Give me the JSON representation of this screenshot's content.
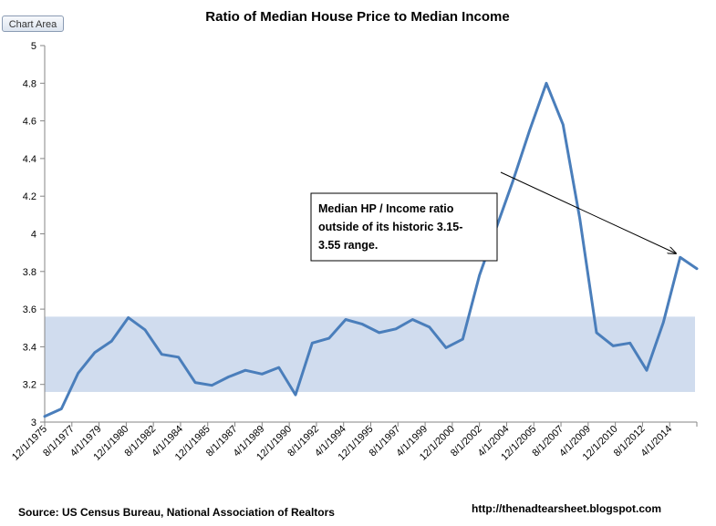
{
  "chart_area_label": "Chart Area",
  "colors": {
    "line": "#4a7ebb",
    "band": "#d0dcee",
    "axis": "#868686",
    "arrow": "#000000"
  },
  "chart_data": {
    "type": "line",
    "title": "Ratio of Median House Price to Median Income",
    "xlabel": "",
    "ylabel": "",
    "ylim": [
      3,
      5
    ],
    "y_ticks": [
      "3",
      "3.2",
      "3.4",
      "3.6",
      "3.8",
      "4",
      "4.2",
      "4.4",
      "4.6",
      "4.8",
      "5"
    ],
    "y_tick_values": [
      3,
      3.2,
      3.4,
      3.6,
      3.8,
      4,
      4.2,
      4.4,
      4.6,
      4.8,
      5
    ],
    "x_tick_labels": [
      "12/1/1975",
      "8/1/1977",
      "4/1/1979",
      "12/1/1980",
      "8/1/1982",
      "4/1/1984",
      "12/1/1985",
      "8/1/1987",
      "4/1/1989",
      "12/1/1990",
      "8/1/1992",
      "4/1/1994",
      "12/1/1995",
      "8/1/1997",
      "4/1/1999",
      "12/1/2000",
      "8/1/2002",
      "4/1/2004",
      "12/1/2005",
      "8/1/2007",
      "4/1/2009",
      "12/1/2010",
      "8/1/2012",
      "4/1/2014"
    ],
    "band": {
      "low": 3.16,
      "high": 3.56
    },
    "series": [
      {
        "name": "Ratio of Median House Price to Median Income",
        "values": [
          3.03,
          3.07,
          3.26,
          3.37,
          3.43,
          3.555,
          3.49,
          3.36,
          3.345,
          3.21,
          3.195,
          3.24,
          3.275,
          3.255,
          3.29,
          3.145,
          3.42,
          3.445,
          3.545,
          3.52,
          3.475,
          3.495,
          3.545,
          3.505,
          3.395,
          3.44,
          3.78,
          4.03,
          4.28,
          4.55,
          4.8,
          4.58,
          4.08,
          3.475,
          3.405,
          3.42,
          3.275,
          3.53,
          3.875,
          3.815
        ]
      }
    ],
    "annotation": "Median HP / Income ratio outside of its historic 3.15-3.55 range."
  },
  "annotation_lines": [
    "Median HP / Income ratio",
    "outside of its historic 3.15-",
    "3.55 range."
  ],
  "footer": {
    "source": "Source:   US Census Bureau, National Association of Realtors",
    "url": "http://thenadtearsheet.blogspot.com"
  }
}
